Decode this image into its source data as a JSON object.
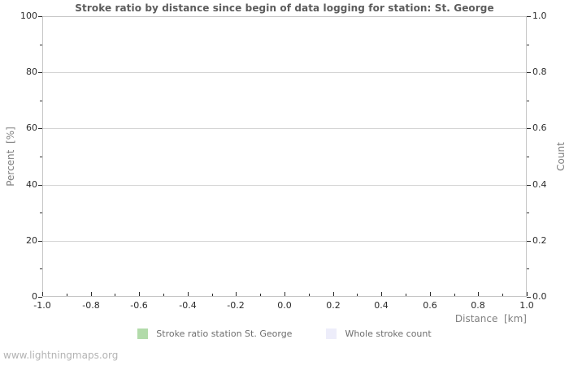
{
  "page": {
    "watermark": "www.lightningmaps.org"
  },
  "chart_data": {
    "type": "line",
    "title": "Stroke ratio by distance since begin of data logging for station: St. George",
    "grid": "horizontal-only",
    "legend_position": "bottom-center",
    "x_axis": {
      "label": "Distance  [km]",
      "range": [
        -1.0,
        1.0
      ],
      "major_tick_values": [
        -1.0,
        -0.8,
        -0.6,
        -0.4,
        -0.2,
        0.0,
        0.2,
        0.4,
        0.6,
        0.8,
        1.0
      ],
      "major_tick_labels": [
        "-1.0",
        "-0.8",
        "-0.6",
        "-0.4",
        "-0.2",
        "0.0",
        "0.2",
        "0.4",
        "0.6",
        "0.8",
        "1.0"
      ],
      "minor_tick_values": [
        -0.9,
        -0.7,
        -0.5,
        -0.3,
        -0.1,
        0.1,
        0.3,
        0.5,
        0.7,
        0.9
      ]
    },
    "left_axis": {
      "label": "Percent  [%]",
      "range": [
        0,
        100
      ],
      "major_tick_values": [
        0,
        20,
        40,
        60,
        80,
        100
      ],
      "major_tick_labels": [
        "0",
        "20",
        "40",
        "60",
        "80",
        "100"
      ],
      "minor_tick_values": [
        10,
        30,
        50,
        70,
        90
      ],
      "gridline_values": [
        20,
        40,
        60,
        80
      ]
    },
    "right_axis": {
      "label": "Count",
      "range": [
        0.0,
        1.0
      ],
      "major_tick_values": [
        0.0,
        0.2,
        0.4,
        0.6,
        0.8,
        1.0
      ],
      "major_tick_labels": [
        "0.0",
        "0.2",
        "0.4",
        "0.6",
        "0.8",
        "1.0"
      ],
      "minor_tick_values": [
        0.1,
        0.3,
        0.5,
        0.7,
        0.9
      ]
    },
    "series": [
      {
        "name": "Stroke ratio station St. George",
        "color": "#b2dbaa",
        "axis": "left",
        "x": [],
        "values": []
      },
      {
        "name": "Whole stroke count",
        "color": "#ededfa",
        "axis": "right",
        "x": [],
        "values": []
      }
    ]
  }
}
